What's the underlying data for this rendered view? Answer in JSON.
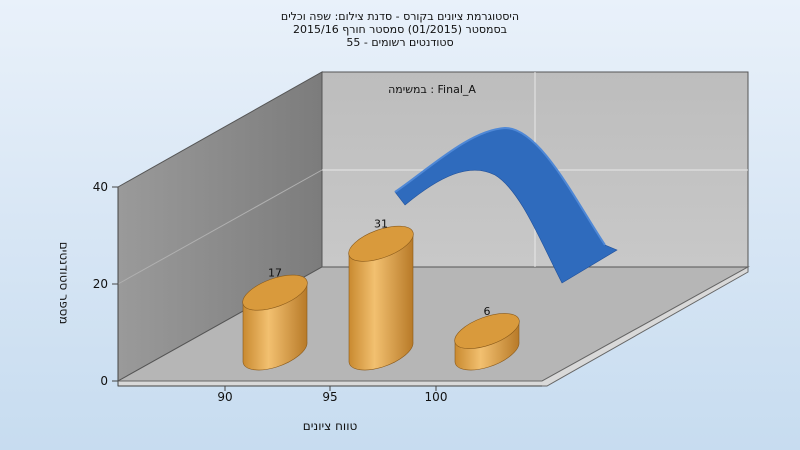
{
  "chart_data": {
    "type": "bar",
    "title_lines": [
      "היסטוגרמת ציונים בקורס - סדנת צילום: שפה וכלים",
      "בסמסטר  (01/2015)  סמסטר חורף 2015/16",
      "סטודנטים רשומים - 55"
    ],
    "annotation": "במשימה : Final_A",
    "xlabel": "טווח ציונים",
    "ylabel": "מספר סטודנטים",
    "categories": [
      "90",
      "95",
      "100"
    ],
    "values": [
      17,
      31,
      6
    ],
    "ylim": [
      0,
      40
    ],
    "yticks": [
      0,
      20,
      40
    ],
    "trend_line": "normal-curve",
    "colors": {
      "bar": "#e0a040",
      "bar_dark": "#b8782a",
      "curve": "#2f6bbd",
      "back_wall": "#c0c0c0",
      "side_wall": "#8a8a8a",
      "floor": "#b4b4b4"
    }
  }
}
